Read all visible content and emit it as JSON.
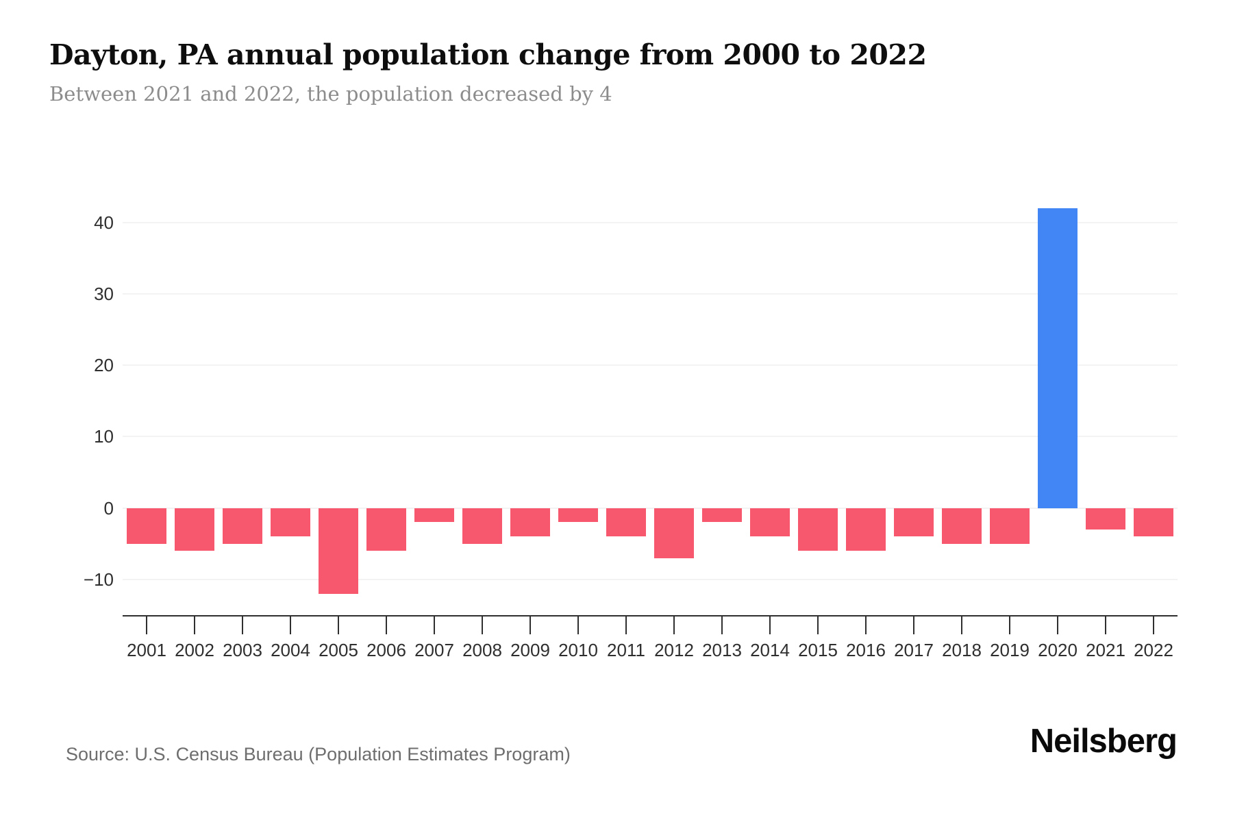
{
  "header": {
    "title": "Dayton, PA annual population change from 2000 to 2022",
    "subtitle": "Between 2021 and 2022, the population decreased by 4"
  },
  "footer": {
    "source": "Source: U.S. Census Bureau (Population Estimates Program)",
    "logo": "Neilsberg"
  },
  "chart_data": {
    "type": "bar",
    "title": "Dayton, PA annual population change from 2000 to 2022",
    "subtitle": "Between 2021 and 2022, the population decreased by 4",
    "categories": [
      "2001",
      "2002",
      "2003",
      "2004",
      "2005",
      "2006",
      "2007",
      "2008",
      "2009",
      "2010",
      "2011",
      "2012",
      "2013",
      "2014",
      "2015",
      "2016",
      "2017",
      "2018",
      "2019",
      "2020",
      "2021",
      "2022"
    ],
    "values": [
      -5,
      -6,
      -5,
      -4,
      -12,
      -6,
      -2,
      -5,
      -4,
      -2,
      -4,
      -7,
      -2,
      -4,
      -6,
      -6,
      -4,
      -5,
      -5,
      42,
      -3,
      -4
    ],
    "xlabel": "",
    "ylabel": "",
    "ylim": [
      -15.2,
      46
    ],
    "yticks": [
      40,
      30,
      20,
      10,
      0,
      -10
    ],
    "ytick_labels": [
      "40",
      "30",
      "20",
      "10",
      "0",
      "−10"
    ],
    "grid": true,
    "legend": false,
    "colors": {
      "positive": "#4285F4",
      "negative": "#F8586E",
      "gridline": "#f3f3f3",
      "axis": "#2f2f2f",
      "tick_text": "#2f2f2f"
    }
  }
}
